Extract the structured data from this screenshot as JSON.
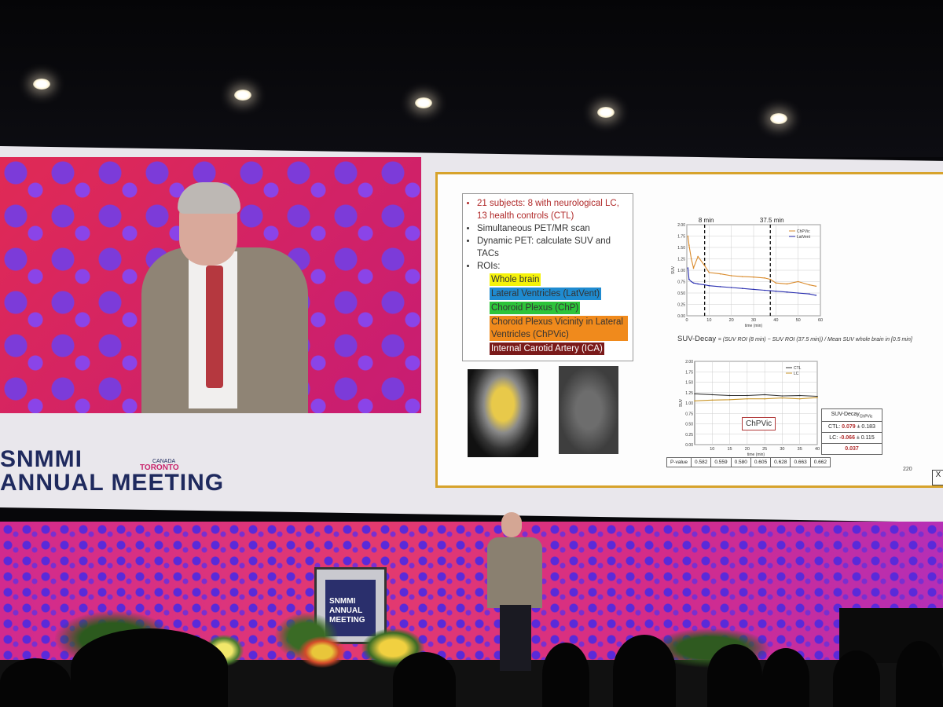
{
  "conference": {
    "brand_line1": "SNMMI",
    "brand_line2": "ANNUAL MEETING",
    "brand_country": "CANADA",
    "brand_city": "TORONTO",
    "podium_line1": "SNMMI",
    "podium_line2": "ANNUAL",
    "podium_line3": "MEETING"
  },
  "slide": {
    "bullets": [
      "21 subjects: 8 with neurological LC, 13 health controls (CTL)",
      "Simultaneous PET/MR scan",
      "Dynamic PET: calculate SUV and TACs",
      "ROIs:"
    ],
    "rois": [
      {
        "label": "Whole brain",
        "color": "#f5f20a"
      },
      {
        "label": "Lateral Ventricles (LatVent)",
        "color": "#1f8bd0"
      },
      {
        "label": "Choroid Plexus (ChP)",
        "color": "#2dc43a"
      },
      {
        "label": "Choroid Plexus Vicinity in Lateral Ventricles (ChPVic)",
        "color": "#f08a1c"
      },
      {
        "label": "Internal Carotid Artery (ICA)",
        "color": "#7a1a1a"
      }
    ],
    "formula_lhs": "SUV-Decay",
    "formula_rhs": "= (SUV ROI (8 min) − SUV ROI (37.5 min)) / Mean SUV whole brain in [0.5 min]",
    "chpvic_box": "ChPVic",
    "pvalue_label": "P-value",
    "pvalues": [
      "0.582",
      "0.559",
      "0.580",
      "0.605",
      "0.628",
      "0.663",
      "0.662"
    ],
    "suv_table": {
      "header": "SUV-Decay",
      "header_sub": "ChPVic",
      "ctl_label": "CTL:",
      "ctl_value": "0.079",
      "ctl_err": "± 0.183",
      "lc_label": "LC:",
      "lc_value": "-0.066",
      "lc_err": "± 0.115",
      "p": "0.037"
    },
    "page_number": "220",
    "close_mark": "X"
  },
  "chart_data": [
    {
      "type": "line",
      "title": "",
      "xlabel": "time (min)",
      "ylabel": "SUV",
      "xlim": [
        0,
        60
      ],
      "ylim": [
        0,
        2.0
      ],
      "xticks": [
        "0",
        "10",
        "20",
        "30",
        "40",
        "50",
        "60"
      ],
      "yticks": [
        "0.00",
        "0.25",
        "0.50",
        "0.75",
        "1.00",
        "1.25",
        "1.50",
        "1.75",
        "2.00"
      ],
      "annotations": [
        {
          "label": "8 min",
          "x": 8
        },
        {
          "label": "37.5 min",
          "x": 37.5
        }
      ],
      "series": [
        {
          "name": "ChPVic",
          "color": "#d98a2b",
          "x": [
            0.5,
            1,
            2,
            3,
            5,
            8,
            10,
            15,
            20,
            25,
            30,
            35,
            37.5,
            40,
            45,
            50,
            55,
            58
          ],
          "y": [
            1.75,
            1.55,
            1.25,
            1.05,
            1.3,
            1.1,
            0.95,
            0.92,
            0.88,
            0.86,
            0.85,
            0.83,
            0.8,
            0.72,
            0.7,
            0.75,
            0.68,
            0.65
          ]
        },
        {
          "name": "LatVent",
          "color": "#2a2fb0",
          "x": [
            0.5,
            1,
            2,
            3,
            5,
            8,
            10,
            15,
            20,
            25,
            30,
            35,
            37.5,
            40,
            45,
            50,
            55,
            58
          ],
          "y": [
            1.05,
            0.8,
            0.75,
            0.72,
            0.7,
            0.68,
            0.66,
            0.64,
            0.62,
            0.6,
            0.58,
            0.56,
            0.55,
            0.54,
            0.52,
            0.5,
            0.48,
            0.45
          ]
        }
      ]
    },
    {
      "type": "line",
      "title": "",
      "xlabel": "time (min)",
      "ylabel": "SUV",
      "xlim": [
        5,
        40
      ],
      "ylim": [
        0,
        2.0
      ],
      "xticks": [
        "10",
        "15",
        "20",
        "25",
        "30",
        "35",
        "40"
      ],
      "yticks": [
        "0.00",
        "0.25",
        "0.50",
        "0.75",
        "1.00",
        "1.25",
        "1.50",
        "1.75",
        "2.00"
      ],
      "series": [
        {
          "name": "CTL",
          "color": "#333333",
          "x": [
            5,
            10,
            15,
            20,
            25,
            30,
            35,
            40
          ],
          "y": [
            1.22,
            1.2,
            1.18,
            1.18,
            1.2,
            1.17,
            1.18,
            1.16
          ]
        },
        {
          "name": "LC",
          "color": "#c9962a",
          "x": [
            5,
            10,
            15,
            20,
            25,
            30,
            35,
            40
          ],
          "y": [
            1.05,
            1.07,
            1.08,
            1.1,
            1.1,
            1.12,
            1.1,
            1.13
          ]
        }
      ]
    }
  ]
}
